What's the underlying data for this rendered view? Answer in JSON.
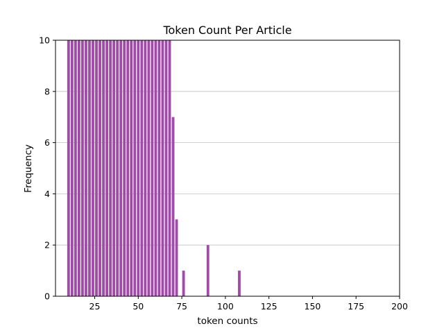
{
  "chart_data": {
    "type": "bar",
    "title": "Token Count Per Article",
    "xlabel": "token counts",
    "ylabel": "Frequency",
    "xlim": [
      2.5,
      200
    ],
    "ylim": [
      0,
      10
    ],
    "xticks": [
      25,
      50,
      75,
      100,
      125,
      150,
      175,
      200
    ],
    "yticks": [
      0,
      2,
      4,
      6,
      8,
      10
    ],
    "grid": "y",
    "bar_color": "#a14aaa",
    "bin_width": 2,
    "x": [
      10,
      12,
      14,
      16,
      18,
      20,
      22,
      24,
      26,
      28,
      30,
      32,
      34,
      36,
      38,
      40,
      42,
      44,
      46,
      48,
      50,
      52,
      54,
      56,
      58,
      60,
      62,
      64,
      66,
      68,
      70,
      72,
      76,
      90,
      108
    ],
    "values": [
      10,
      10,
      10,
      10,
      10,
      10,
      10,
      10,
      10,
      10,
      10,
      10,
      10,
      10,
      10,
      10,
      10,
      10,
      10,
      10,
      10,
      10,
      10,
      10,
      10,
      10,
      10,
      10,
      10,
      10,
      7,
      3,
      1,
      2,
      1
    ]
  }
}
